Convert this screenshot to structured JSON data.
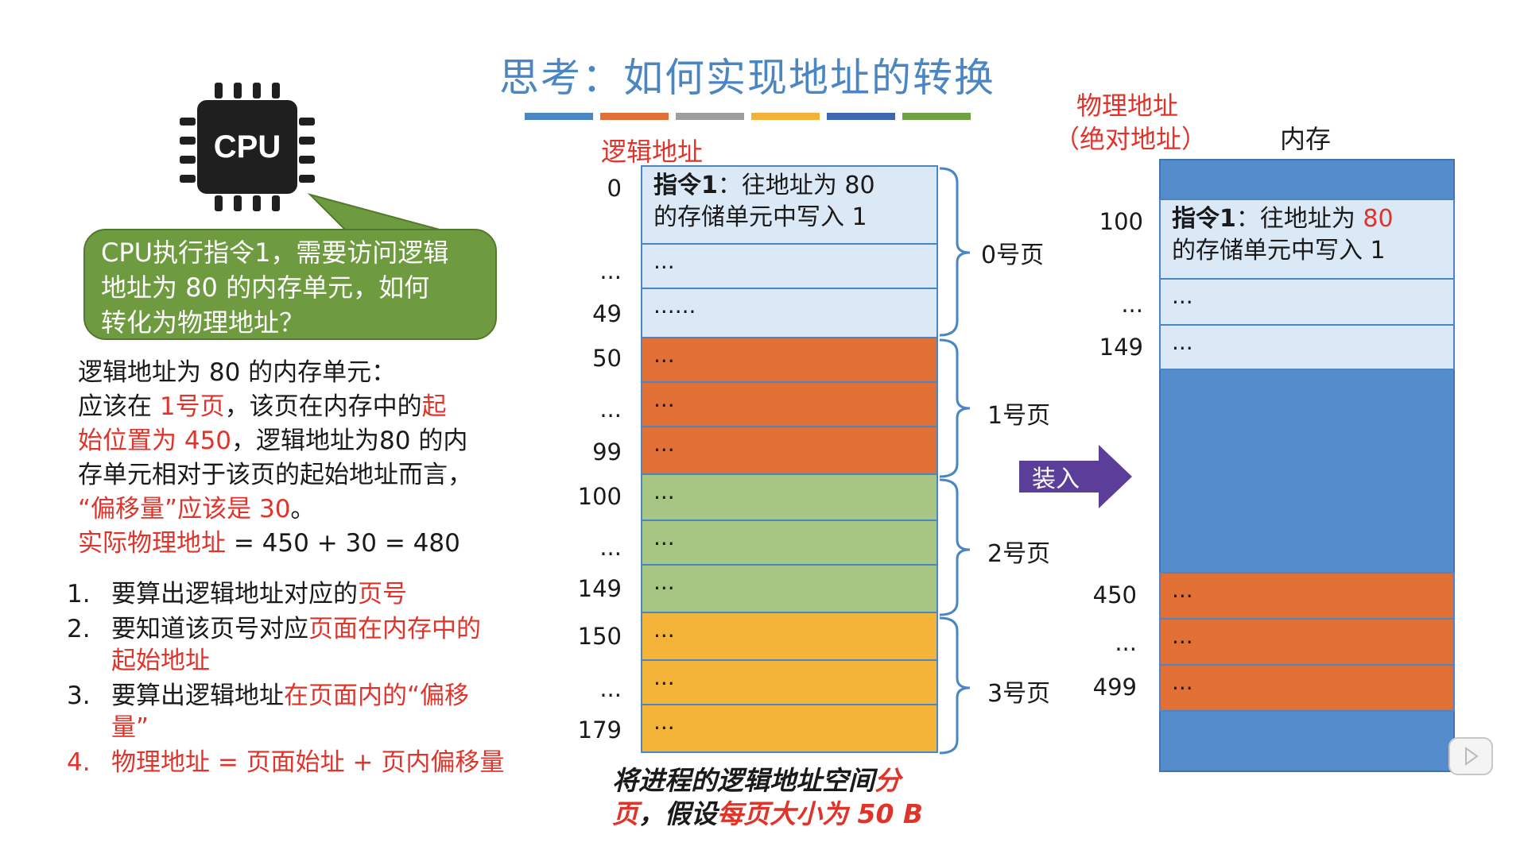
{
  "title": "思考：如何实现地址的转换",
  "title_bar_colors": [
    "#4b86c4",
    "#e07036",
    "#9e9e9e",
    "#f3b13a",
    "#3f66b0",
    "#6ea241"
  ],
  "cpu": {
    "chip_label": "CPU",
    "bubble_text": [
      "CPU执行指令1，需要访问逻辑",
      "地址为 80 的内存单元，如何",
      "转化为物理地址？"
    ]
  },
  "description": {
    "l1": "逻辑地址为 80 的内存单元：",
    "l2a": "应该在 ",
    "l2b": "1号页",
    "l2c": "，该页在内存中的",
    "l2d": "起",
    "l3a": "始位置为 450",
    "l3b": "，逻辑地址为80 的内",
    "l4": "存单元相对于该页的起始地址而言，",
    "l5": "“偏移量”应该是 30",
    "l5end": "。",
    "l6a": "实际物理地址",
    "l6b": " = 450 + 30 = 480"
  },
  "steps": [
    {
      "num": "1.",
      "a": "要算出逻辑地址对应的",
      "b": "页号",
      "c": ""
    },
    {
      "num": "2.",
      "a": "要知道该页号对应",
      "b": "页面在内存中的",
      "c": "起始地址"
    },
    {
      "num": "3.",
      "a": "要算出逻辑地址",
      "b": "在页面内的“偏移",
      "c": "量”"
    },
    {
      "num": "4.",
      "a": "物理地址 = 页面始址 + 页内偏移量",
      "b": "",
      "c": ""
    }
  ],
  "logical": {
    "label": "逻辑地址",
    "addresses": [
      "0",
      "...",
      "49",
      "50",
      "...",
      "99",
      "100",
      "...",
      "149",
      "150",
      "...",
      "179"
    ],
    "cell0_a": "指令1",
    "cell0_b": "：往地址为 80",
    "cell0_c": "的存储单元中写入 1",
    "cells": [
      "...",
      "......",
      "...",
      "...",
      "...",
      "...",
      "...",
      "...",
      "...",
      "...",
      "..."
    ],
    "pages": [
      "0号页",
      "1号页",
      "2号页",
      "3号页"
    ],
    "page_colors": [
      "#dbe8f5",
      "#e07036",
      "#a7c683",
      "#f4b43a"
    ]
  },
  "caption": {
    "a": "将进程的逻辑地址空间",
    "b": "分",
    "c": "页",
    "d": "，假设",
    "e": "每页大小为 50 B"
  },
  "arrow_label": "装入",
  "physical": {
    "label_a": "物理地址",
    "label_b": "（绝对地址）",
    "memory_label": "内存",
    "addresses": [
      "100",
      "...",
      "149",
      "450",
      "...",
      "499"
    ],
    "instr_a": "指令1",
    "instr_b": "：往地址为 ",
    "instr_c": "80",
    "instr_d": "的存储单元中写入 1",
    "cells": [
      "...",
      "...",
      "...",
      "...",
      "..."
    ]
  }
}
